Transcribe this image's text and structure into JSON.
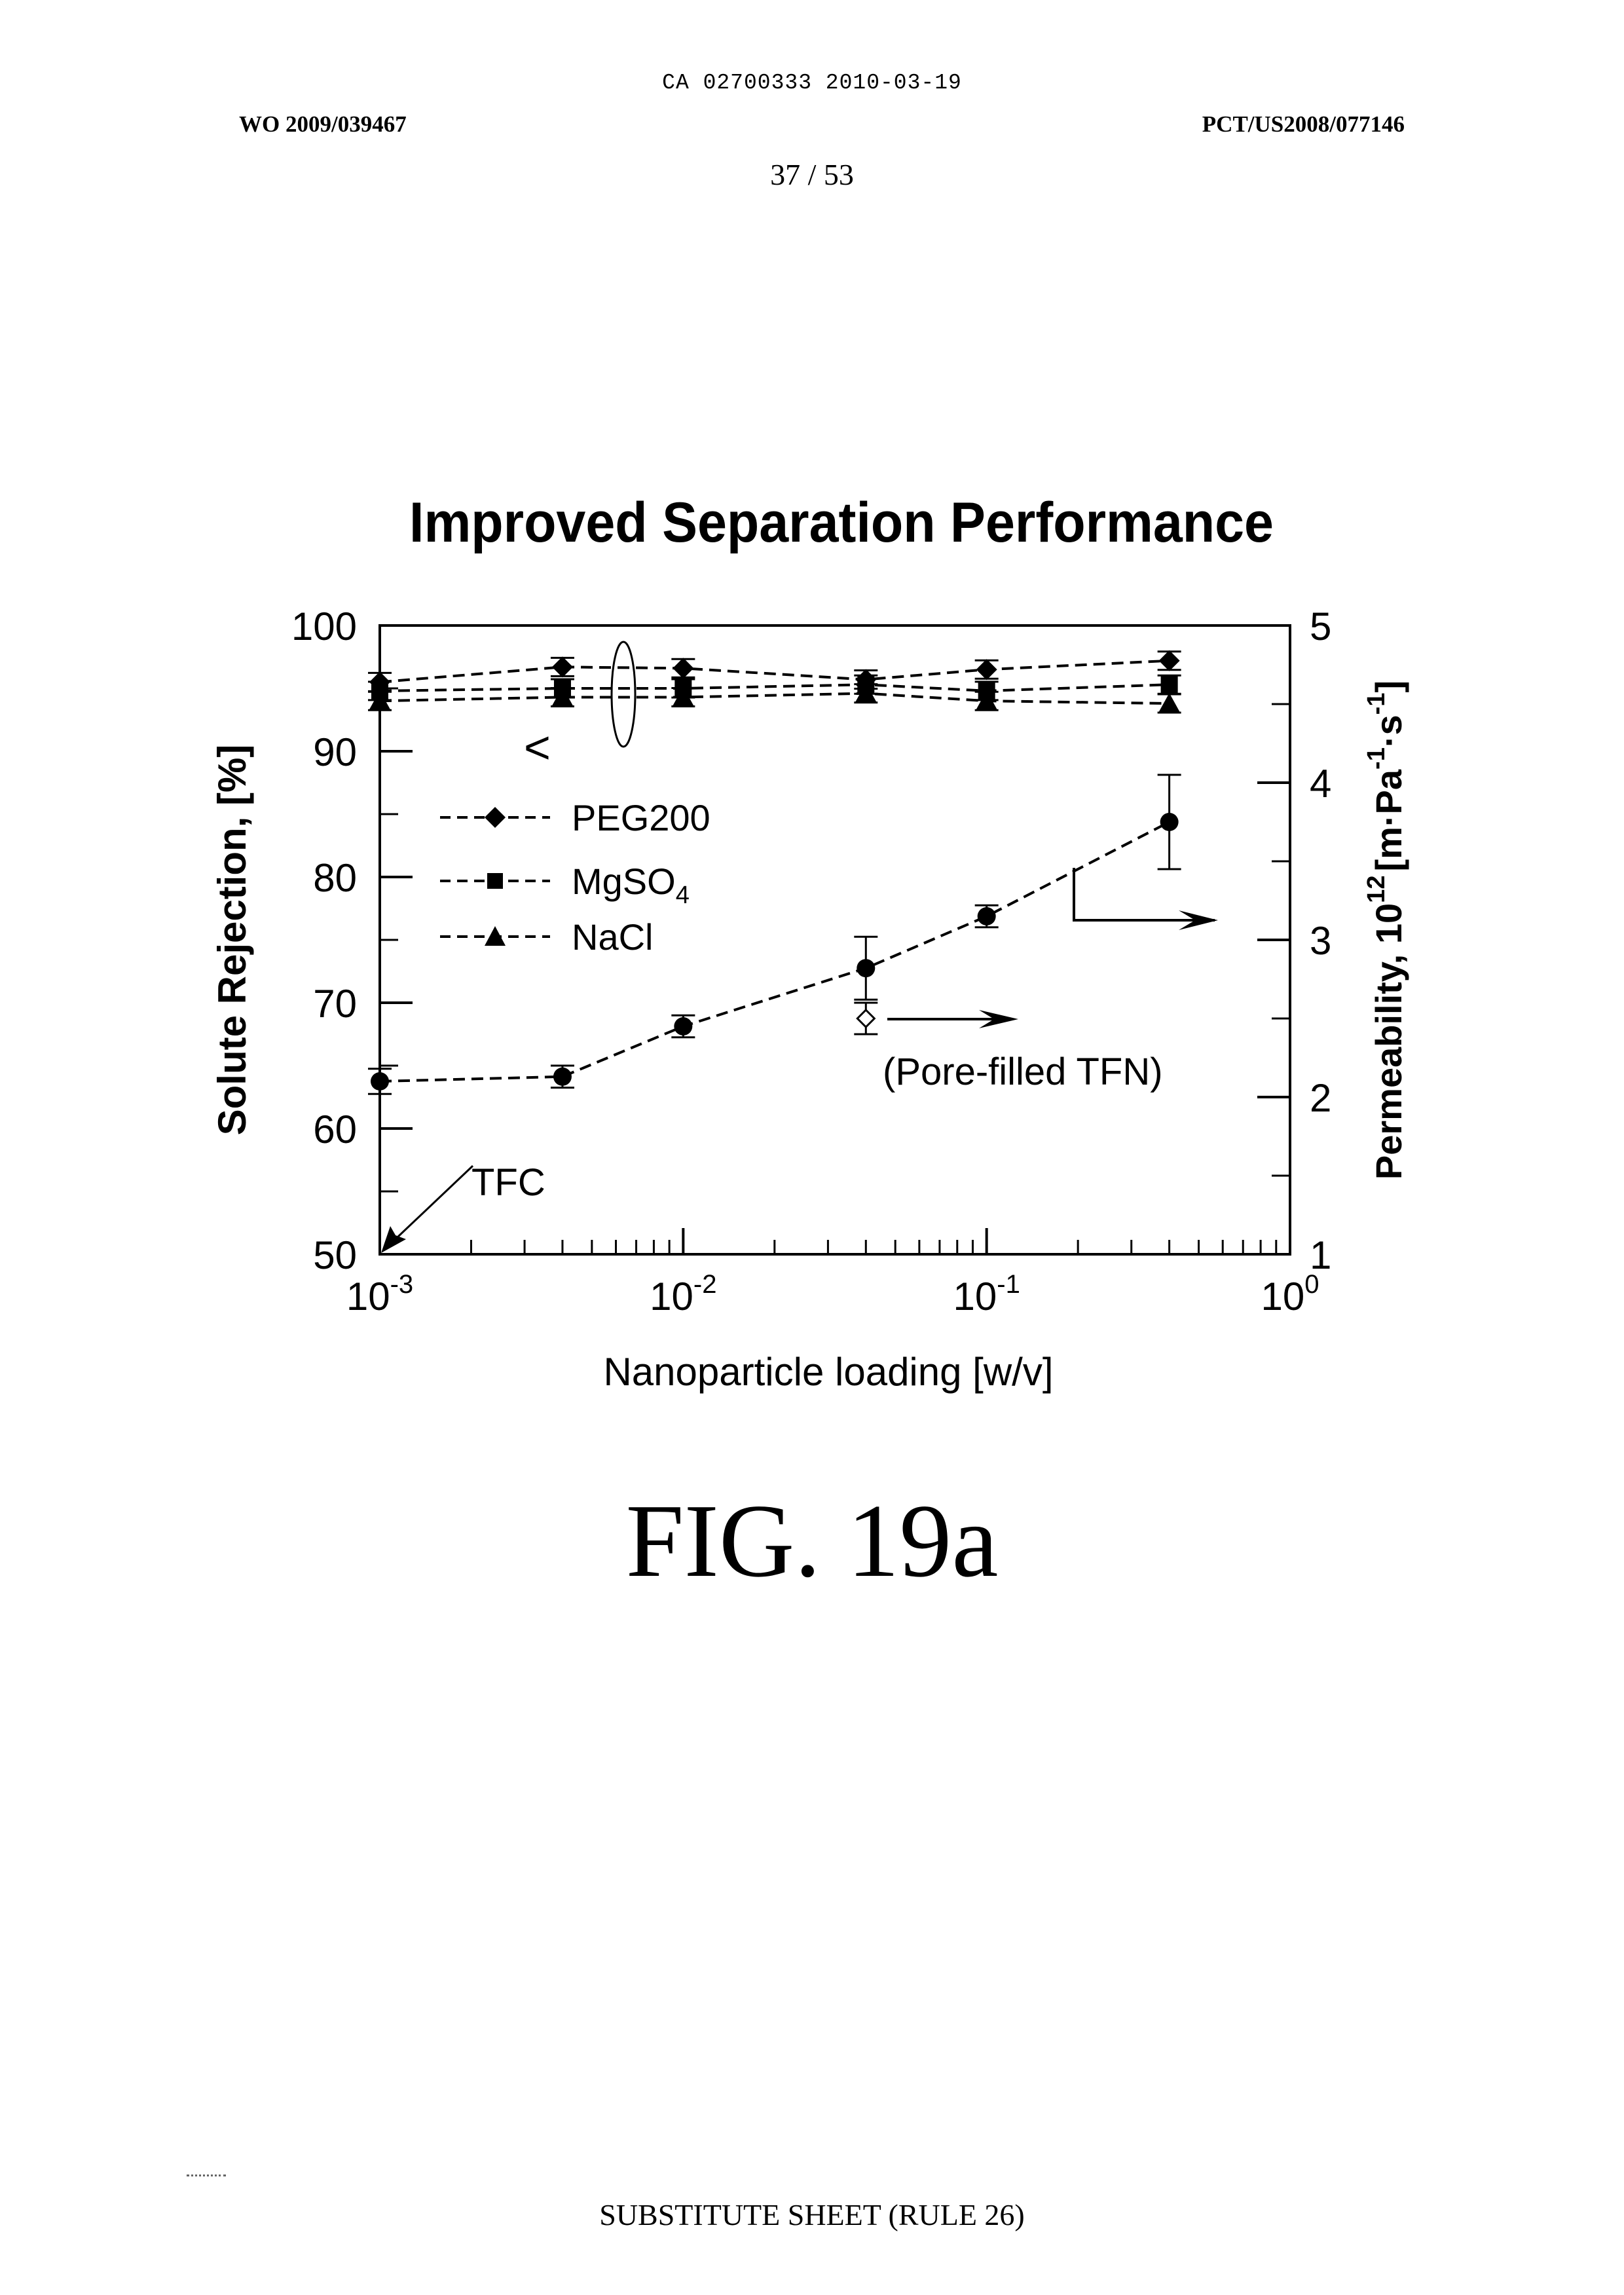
{
  "header": {
    "ca_line": "CA 02700333 2010-03-19",
    "wo_number": "WO 2009/039467",
    "pct_number": "PCT/US2008/077146",
    "page_number": "37 / 53"
  },
  "figure": {
    "label": "FIG. 19a"
  },
  "footer": {
    "text": "SUBSTITUTE SHEET (RULE 26)"
  },
  "chart_data": {
    "type": "line",
    "title": "Improved Separation Performance",
    "xlabel": "Nanoparticle loading [w/v]",
    "ylabel_left": "Solute Rejection, [%]",
    "ylabel_right_prefix": "Permeability, 10",
    "ylabel_right_exp": "12",
    "ylabel_right_unit_main": "[m·Pa",
    "ylabel_right_unit_exp1": "-1",
    "ylabel_right_unit_mid": "·s",
    "ylabel_right_unit_exp2": "-1",
    "ylabel_right_unit_close": "]",
    "x_scale": "log",
    "xlim": [
      0.001,
      1
    ],
    "x_ticks": [
      {
        "base": "10",
        "exp": "-3"
      },
      {
        "base": "10",
        "exp": "-2"
      },
      {
        "base": "10",
        "exp": "-1"
      },
      {
        "base": "10",
        "exp": "0"
      }
    ],
    "ylim_left": [
      50,
      100
    ],
    "y_ticks_left": [
      "50",
      "60",
      "70",
      "80",
      "90",
      "100"
    ],
    "ylim_right": [
      1,
      5
    ],
    "y_ticks_right": [
      "1",
      "2",
      "3",
      "4",
      "5"
    ],
    "legend_placement": "upper-left",
    "series": [
      {
        "name": "PEG200",
        "name_base": "PEG200",
        "name_sub": "",
        "marker": "diamond",
        "axis": "left",
        "x": [
          0.001,
          0.004,
          0.01,
          0.04,
          0.1,
          0.4
        ],
        "y": [
          95.5,
          96.7,
          96.6,
          95.7,
          96.5,
          97.2
        ]
      },
      {
        "name": "MgSO4",
        "name_base": "MgSO",
        "name_sub": "4",
        "marker": "square",
        "axis": "left",
        "x": [
          0.001,
          0.004,
          0.01,
          0.04,
          0.1,
          0.4
        ],
        "y": [
          94.8,
          95.0,
          95.0,
          95.3,
          94.8,
          95.3
        ]
      },
      {
        "name": "NaCl",
        "name_base": "NaCl",
        "name_sub": "",
        "marker": "triangle",
        "axis": "left",
        "x": [
          0.001,
          0.004,
          0.01,
          0.04,
          0.1,
          0.4
        ],
        "y": [
          94.0,
          94.3,
          94.3,
          94.6,
          94.0,
          93.8
        ]
      },
      {
        "name": "Permeability",
        "marker": "circle",
        "axis": "right",
        "x": [
          0.001,
          0.004,
          0.01,
          0.04,
          0.1,
          0.4
        ],
        "y": [
          2.1,
          2.13,
          2.45,
          2.82,
          3.15,
          3.75
        ],
        "error": [
          0.08,
          0.07,
          0.07,
          0.2,
          0.07,
          0.3
        ]
      }
    ],
    "pore_filled_point": {
      "x": 0.04,
      "y": 2.5,
      "error": 0.1,
      "axis": "right",
      "marker": "open-diamond"
    },
    "annotations": {
      "pore_filled": "(Pore-filled TFN)",
      "tfc": "TFC",
      "left_arrow": "<",
      "right_arrow": "→"
    }
  }
}
